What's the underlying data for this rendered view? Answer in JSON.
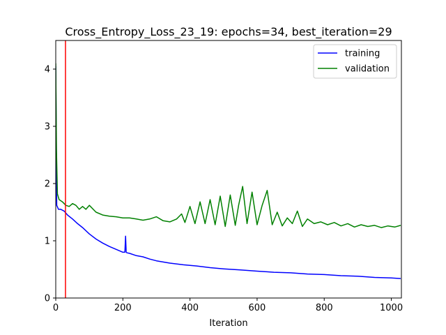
{
  "chart_data": {
    "type": "line",
    "title": "Cross_Entropy_Loss_23_19: epochs=34, best_iteration=29",
    "xlabel": "Iteration",
    "ylabel": "",
    "xlim": [
      0,
      1030
    ],
    "ylim": [
      0,
      4.5
    ],
    "x_ticks": [
      0,
      200,
      400,
      600,
      800,
      1000
    ],
    "y_ticks": [
      0,
      1,
      2,
      3,
      4
    ],
    "grid": false,
    "legend_position": "top-right",
    "best_iteration_line": {
      "x": 29,
      "color": "#ff0000"
    },
    "series": [
      {
        "name": "training",
        "color": "#0000ff",
        "x": [
          0,
          3,
          8,
          15,
          25,
          35,
          50,
          65,
          80,
          100,
          120,
          140,
          160,
          180,
          200,
          206,
          208,
          210,
          212,
          220,
          240,
          260,
          280,
          300,
          340,
          380,
          420,
          460,
          500,
          550,
          600,
          650,
          700,
          750,
          800,
          850,
          900,
          950,
          1000,
          1028
        ],
        "y": [
          4.05,
          1.62,
          1.55,
          1.55,
          1.52,
          1.45,
          1.38,
          1.3,
          1.23,
          1.12,
          1.03,
          0.96,
          0.9,
          0.85,
          0.8,
          0.8,
          1.08,
          0.8,
          0.79,
          0.78,
          0.74,
          0.72,
          0.68,
          0.65,
          0.61,
          0.58,
          0.56,
          0.53,
          0.51,
          0.49,
          0.47,
          0.45,
          0.44,
          0.42,
          0.41,
          0.39,
          0.38,
          0.36,
          0.35,
          0.34
        ]
      },
      {
        "name": "validation",
        "color": "#008000",
        "x": [
          0,
          2,
          5,
          10,
          20,
          30,
          40,
          50,
          60,
          70,
          80,
          90,
          100,
          120,
          140,
          160,
          180,
          200,
          220,
          240,
          260,
          280,
          300,
          320,
          340,
          360,
          375,
          385,
          400,
          415,
          430,
          445,
          460,
          475,
          490,
          505,
          520,
          535,
          545,
          557,
          570,
          585,
          600,
          615,
          630,
          645,
          660,
          675,
          690,
          705,
          720,
          735,
          750,
          770,
          790,
          810,
          830,
          850,
          870,
          890,
          910,
          930,
          950,
          970,
          990,
          1010,
          1028
        ],
        "y": [
          4.1,
          2.6,
          1.82,
          1.72,
          1.68,
          1.62,
          1.6,
          1.65,
          1.62,
          1.55,
          1.6,
          1.55,
          1.62,
          1.5,
          1.45,
          1.43,
          1.42,
          1.4,
          1.4,
          1.38,
          1.36,
          1.38,
          1.42,
          1.35,
          1.33,
          1.38,
          1.47,
          1.32,
          1.6,
          1.3,
          1.68,
          1.3,
          1.72,
          1.28,
          1.78,
          1.25,
          1.8,
          1.27,
          1.62,
          1.95,
          1.3,
          1.85,
          1.28,
          1.62,
          1.88,
          1.28,
          1.5,
          1.26,
          1.4,
          1.3,
          1.52,
          1.25,
          1.38,
          1.3,
          1.33,
          1.28,
          1.32,
          1.26,
          1.3,
          1.24,
          1.28,
          1.25,
          1.27,
          1.23,
          1.26,
          1.24,
          1.27
        ]
      }
    ]
  }
}
